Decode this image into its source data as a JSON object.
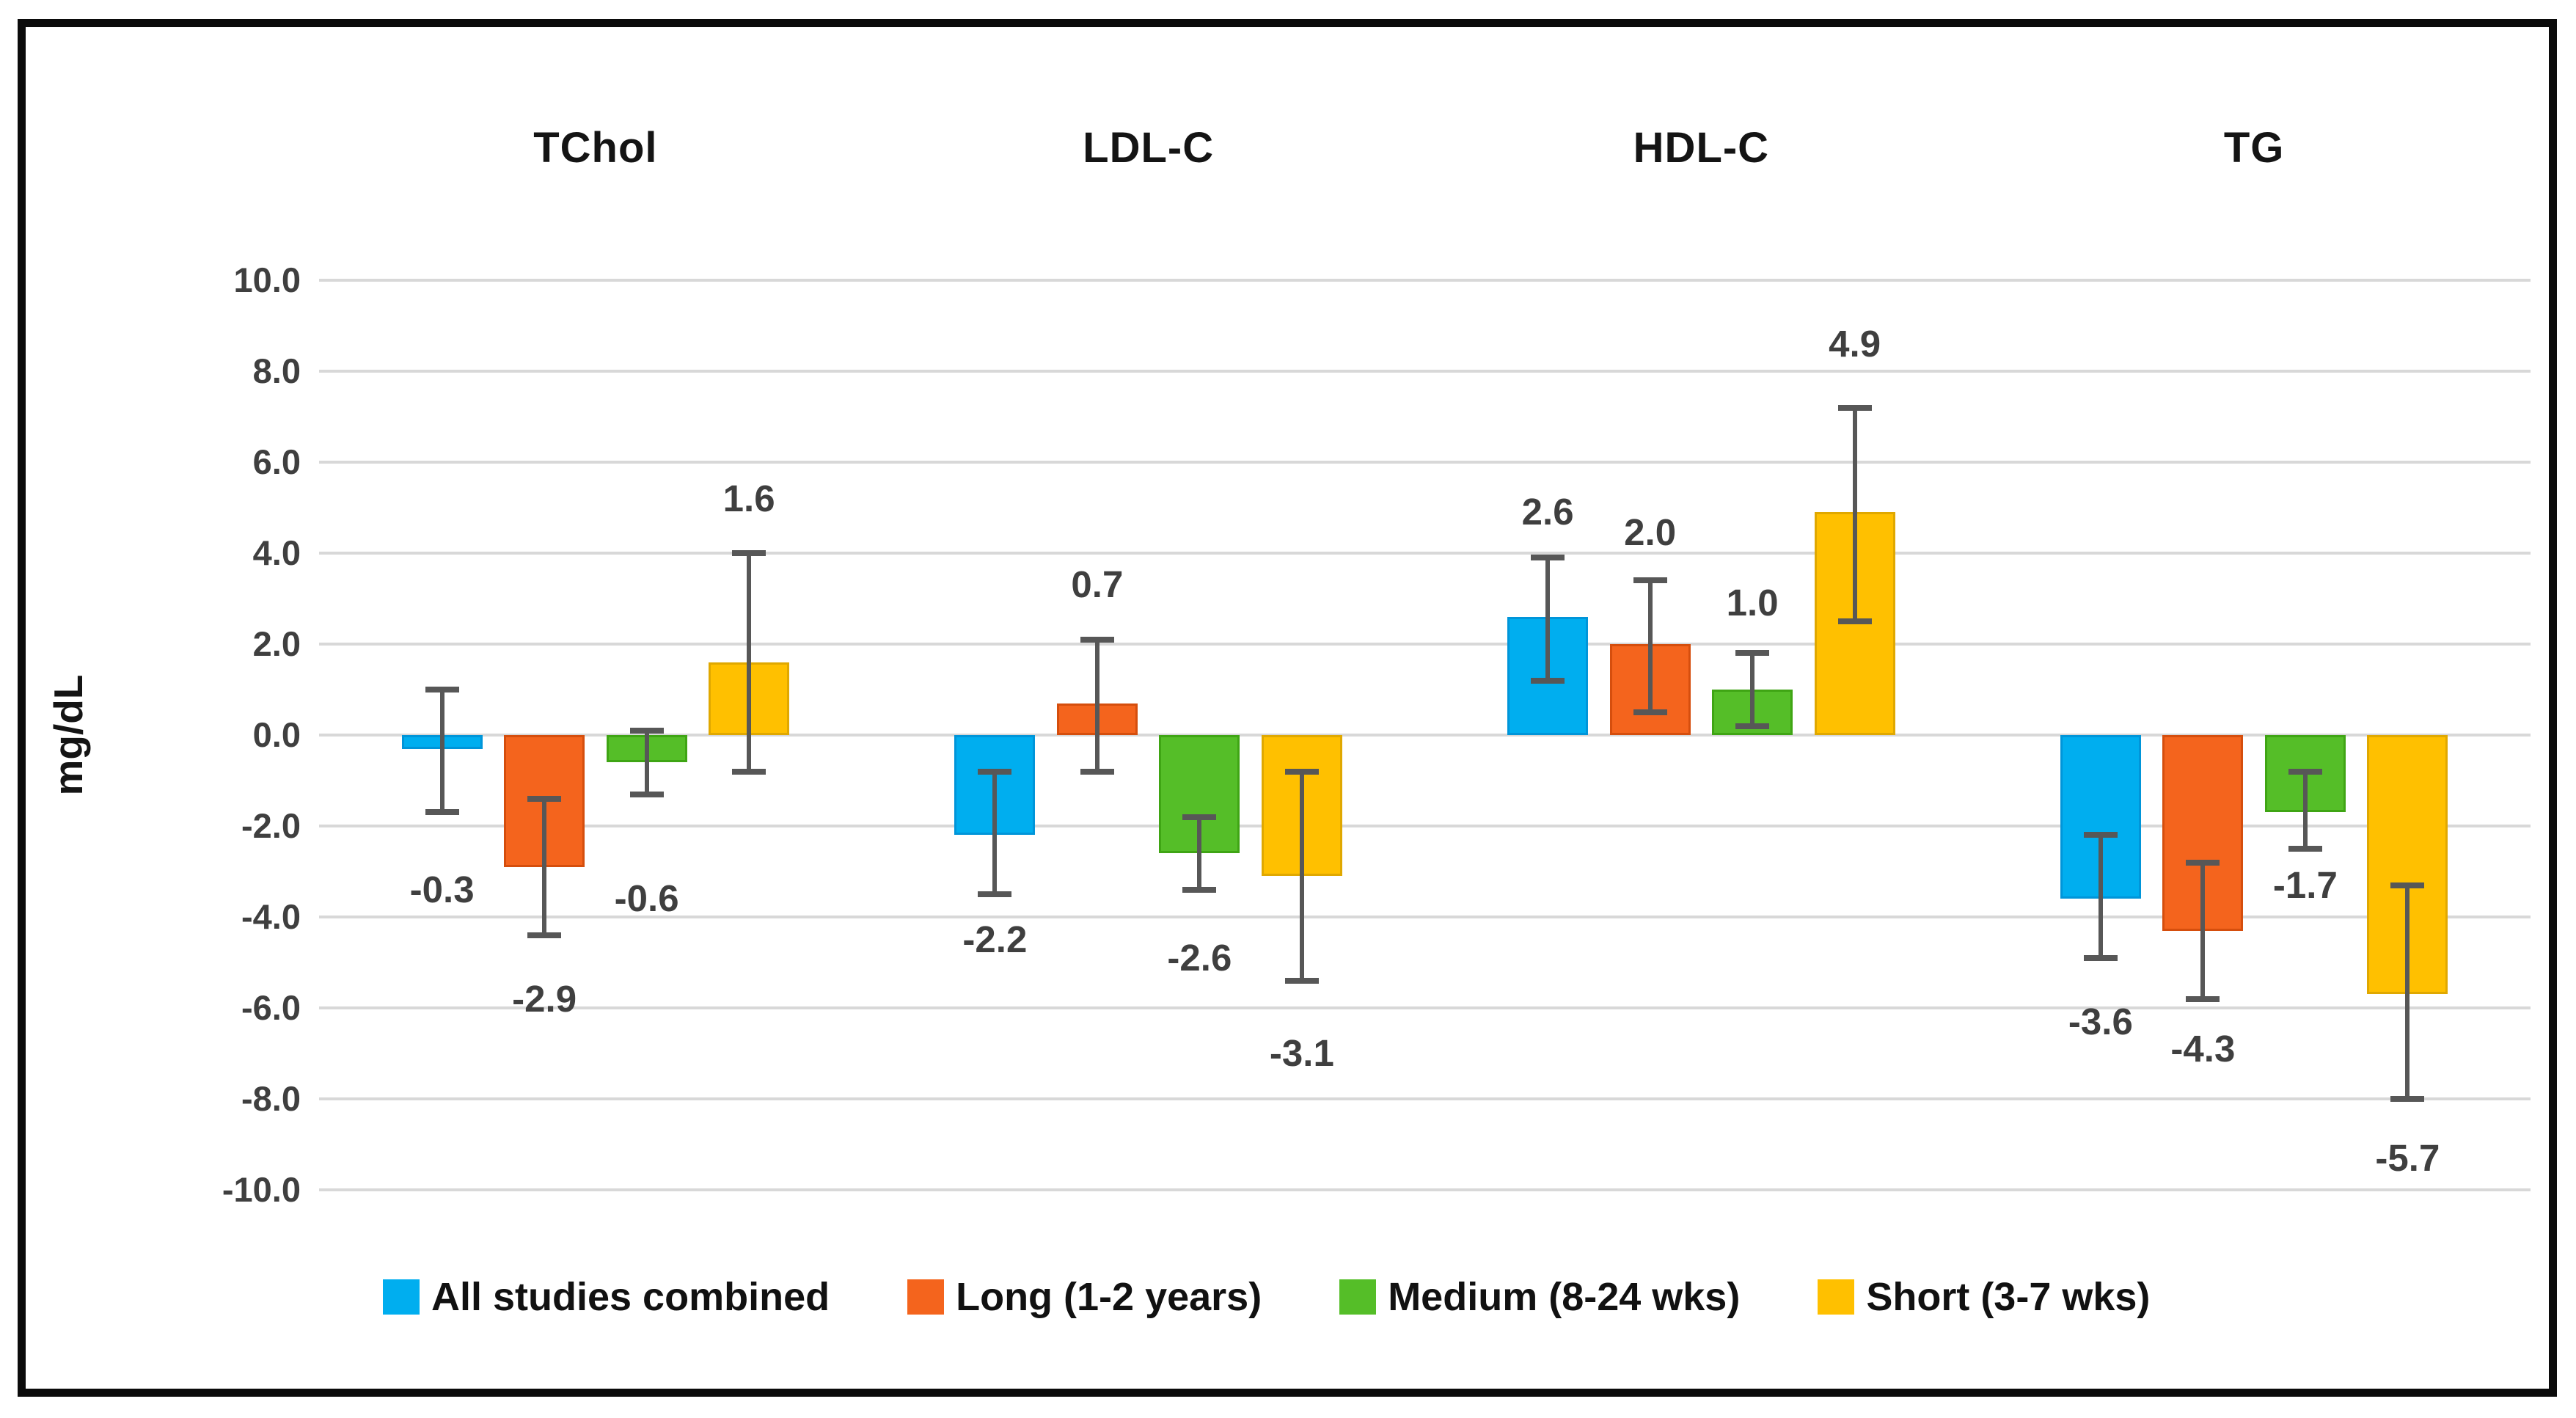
{
  "figure": {
    "background": "#ffffff",
    "border_color": "#0b0b0b"
  },
  "chart_data": {
    "type": "bar",
    "title": "",
    "ylabel": "mg/dL",
    "ylim": [
      -10.0,
      10.0
    ],
    "y_tick_step": 2.0,
    "y_tick_labels": [
      "10.0",
      "8.0",
      "6.0",
      "4.0",
      "2.0",
      "0.0",
      "-2.0",
      "-4.0",
      "-6.0",
      "-8.0",
      "-10.0"
    ],
    "grid": "horizontal",
    "gridline_color": "#d8d8d8",
    "error_bar_color": "#575757",
    "legend_position": "bottom",
    "categories": [
      "TChol",
      "LDL-C",
      "HDL-C",
      "TG"
    ],
    "series": [
      {
        "name": "All studies combined",
        "color": "#00AEEF",
        "edge_color": "#0095D9",
        "values": [
          -0.3,
          -2.2,
          2.6,
          -3.6
        ],
        "data_labels": [
          "-0.3",
          "-2.2",
          "2.6",
          "-3.6"
        ],
        "error_high": [
          1.0,
          -0.8,
          3.9,
          -2.2
        ],
        "error_low": [
          -1.7,
          -3.5,
          1.2,
          -4.9
        ],
        "label_y": [
          -3.4,
          -4.5,
          4.9,
          -6.3
        ]
      },
      {
        "name": "Long (1-2 years)",
        "color": "#F4641D",
        "edge_color": "#D54E0D",
        "values": [
          -2.9,
          0.7,
          2.0,
          -4.3
        ],
        "data_labels": [
          "-2.9",
          "0.7",
          "2.0",
          "-4.3"
        ],
        "error_high": [
          -1.4,
          2.1,
          3.4,
          -2.8
        ],
        "error_low": [
          -4.4,
          -0.8,
          0.5,
          -5.8
        ],
        "label_y": [
          -5.8,
          3.3,
          4.45,
          -6.9
        ]
      },
      {
        "name": "Medium (8-24 wks)",
        "color": "#55BE28",
        "edge_color": "#3FA514",
        "values": [
          -0.6,
          -2.6,
          1.0,
          -1.7
        ],
        "data_labels": [
          "-0.6",
          "-2.6",
          "1.0",
          "-1.7"
        ],
        "error_high": [
          0.1,
          -1.8,
          1.8,
          -0.8
        ],
        "error_low": [
          -1.3,
          -3.4,
          0.2,
          -2.5
        ],
        "label_y": [
          -3.6,
          -4.9,
          2.9,
          -3.3
        ]
      },
      {
        "name": "Short (3-7 wks)",
        "color": "#FFC000",
        "edge_color": "#E0A800",
        "values": [
          1.6,
          -3.1,
          4.9,
          -5.7
        ],
        "data_labels": [
          "1.6",
          "-3.1",
          "4.9",
          "-5.7"
        ],
        "error_high": [
          4.0,
          -0.8,
          7.2,
          -3.3
        ],
        "error_low": [
          -0.8,
          -5.4,
          2.5,
          -8.0
        ],
        "label_y": [
          5.2,
          -7.0,
          8.6,
          -9.3
        ]
      }
    ]
  }
}
